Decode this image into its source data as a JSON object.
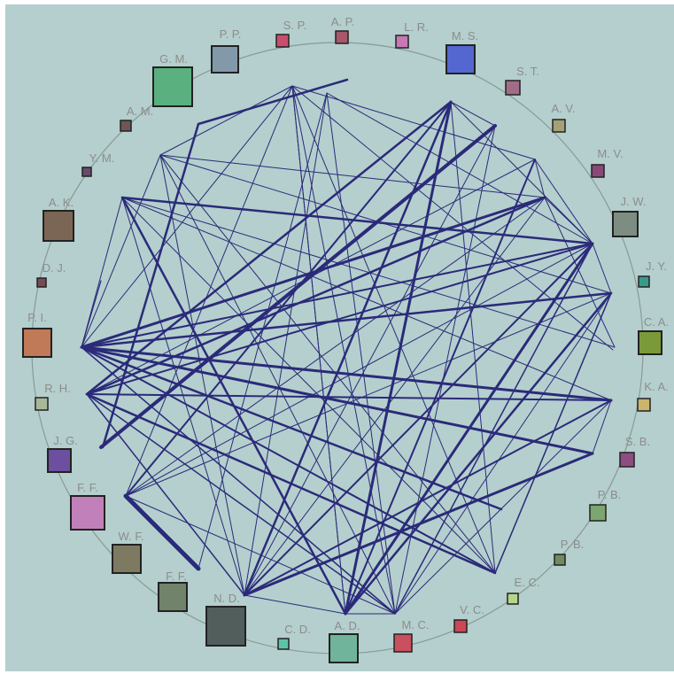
{
  "colors": {
    "background": "#b4cfcd",
    "ring": "#8a9a98",
    "edge": "#2b2a7a",
    "label": "#8c8c8c",
    "node_stroke": "#222222"
  },
  "nodes": [
    {
      "id": "AP",
      "label": "A. P.",
      "color": "#a8576a"
    },
    {
      "id": "LR",
      "label": "L. R.",
      "color": "#c879b3"
    },
    {
      "id": "MS",
      "label": "M. S.",
      "color": "#5466cf"
    },
    {
      "id": "ST",
      "label": "S. T.",
      "color": "#a26c88"
    },
    {
      "id": "AV",
      "label": "A. V.",
      "color": "#a4a177"
    },
    {
      "id": "MV",
      "label": "M. V.",
      "color": "#8a4878"
    },
    {
      "id": "JW",
      "label": "J. W.",
      "color": "#7d8d82"
    },
    {
      "id": "JY",
      "label": "J. Y.",
      "color": "#3a9a8a"
    },
    {
      "id": "CA",
      "label": "C. A.",
      "color": "#7a9a3a"
    },
    {
      "id": "KA",
      "label": "K. A.",
      "color": "#c9b56d"
    },
    {
      "id": "SB",
      "label": "S. B.",
      "color": "#8e4d7f"
    },
    {
      "id": "PB1",
      "label": "P. B.",
      "color": "#7ca66f"
    },
    {
      "id": "PB2",
      "label": "P. B.",
      "color": "#728a5c"
    },
    {
      "id": "EC",
      "label": "E. C.",
      "color": "#b4d68a"
    },
    {
      "id": "VC",
      "label": "V. C.",
      "color": "#cc4655"
    },
    {
      "id": "MC",
      "label": "M. C.",
      "color": "#c9505e"
    },
    {
      "id": "AD",
      "label": "A. D.",
      "color": "#6fb49b"
    },
    {
      "id": "CD",
      "label": "C. D.",
      "color": "#5ec2a8"
    },
    {
      "id": "ND",
      "label": "N. D.",
      "color": "#515e5c"
    },
    {
      "id": "FF2",
      "label": "F. F.",
      "color": "#71836a"
    },
    {
      "id": "WF",
      "label": "W. F.",
      "color": "#7e7a61"
    },
    {
      "id": "FF1",
      "label": "F. F.",
      "color": "#c280bb"
    },
    {
      "id": "JG",
      "label": "J. G.",
      "color": "#6c4f9e"
    },
    {
      "id": "RH",
      "label": "R. H.",
      "color": "#a9b89a"
    },
    {
      "id": "PI",
      "label": "P. I.",
      "color": "#c07a58"
    },
    {
      "id": "DJ",
      "label": "D. J.",
      "color": "#7a4b55"
    },
    {
      "id": "AK",
      "label": "A. K.",
      "color": "#7b6554"
    },
    {
      "id": "YM",
      "label": "Y. M.",
      "color": "#6a4a6a"
    },
    {
      "id": "AM",
      "label": "A. M.",
      "color": "#6d5656"
    },
    {
      "id": "GM",
      "label": "G. M.",
      "color": "#5bb07f"
    },
    {
      "id": "PP",
      "label": "P. P.",
      "color": "#8299aa"
    },
    {
      "id": "SP",
      "label": "S. P.",
      "color": "#c94e6e"
    }
  ]
}
